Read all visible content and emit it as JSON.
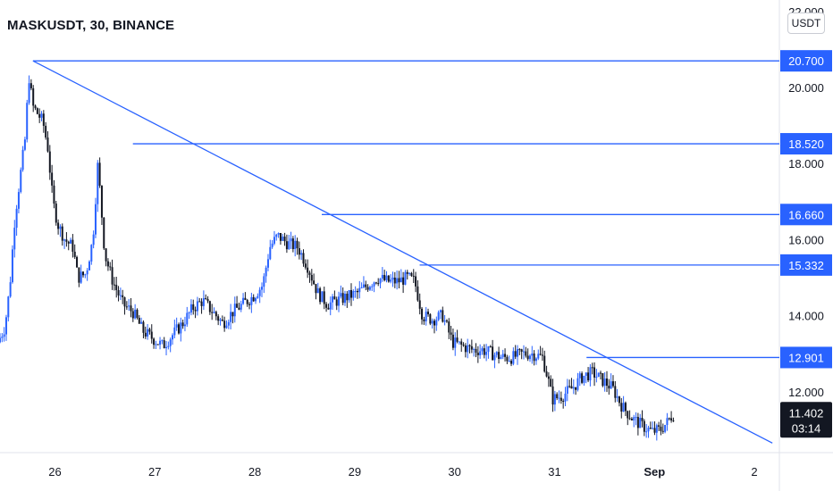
{
  "header": {
    "title": "MASKUSDT, 30, BINANCE"
  },
  "price_axis": {
    "unit": "USDT",
    "tick_labels": [
      "22.000",
      "20.000",
      "18.000",
      "16.000",
      "14.000",
      "12.000"
    ]
  },
  "time_axis": {
    "tick_labels": [
      "26",
      "27",
      "28",
      "29",
      "30",
      "31",
      "Sep",
      "2"
    ]
  },
  "current_price": {
    "price": "11.402",
    "countdown": "03:14",
    "value": 11.402
  },
  "colors": {
    "line": "#2962ff",
    "up_candle": "#2962ff",
    "down_candle": "#131722",
    "current_badge": "#131722",
    "axis_text": "#131722",
    "grid": "#e0e3eb"
  },
  "chart_data": {
    "type": "candlestick",
    "symbol": "MASKUSDT",
    "interval": "30",
    "exchange": "BINANCE",
    "ylim": [
      10.4,
      22.3
    ],
    "y_ticks": [
      22,
      20,
      18,
      16,
      14,
      12
    ],
    "x_ticks": [
      "26",
      "27",
      "28",
      "29",
      "30",
      "31",
      "Sep",
      "2"
    ],
    "x_tick_days": [
      26,
      27,
      28,
      29,
      30,
      31,
      32,
      33
    ],
    "xlim_days": [
      25.45,
      33.25
    ],
    "horizontal_levels": [
      {
        "value": 20.7,
        "label": "20.700",
        "start_day": 25.78
      },
      {
        "value": 18.52,
        "label": "18.520",
        "start_day": 26.78
      },
      {
        "value": 16.66,
        "label": "16.660",
        "start_day": 28.67
      },
      {
        "value": 15.332,
        "label": "15.332",
        "start_day": 29.65
      },
      {
        "value": 12.901,
        "label": "12.901",
        "start_day": 31.32
      }
    ],
    "trendline": {
      "start": {
        "day": 25.78,
        "value": 20.7
      },
      "end": {
        "day": 33.18,
        "value": 10.65
      }
    },
    "price_path": [
      [
        25.45,
        13.3
      ],
      [
        25.52,
        13.7
      ],
      [
        25.57,
        14.8
      ],
      [
        25.62,
        16.6
      ],
      [
        25.67,
        17.6
      ],
      [
        25.72,
        18.6
      ],
      [
        25.76,
        20.3
      ],
      [
        25.8,
        19.5
      ],
      [
        25.85,
        19.3
      ],
      [
        25.9,
        19.1
      ],
      [
        25.95,
        18.4
      ],
      [
        26.0,
        17.0
      ],
      [
        26.05,
        16.4
      ],
      [
        26.12,
        16.0
      ],
      [
        26.2,
        15.8
      ],
      [
        26.25,
        15.0
      ],
      [
        26.33,
        15.1
      ],
      [
        26.4,
        16.0
      ],
      [
        26.45,
        18.0
      ],
      [
        26.52,
        15.6
      ],
      [
        26.6,
        14.9
      ],
      [
        26.7,
        14.3
      ],
      [
        26.8,
        14.1
      ],
      [
        26.9,
        13.6
      ],
      [
        27.0,
        13.4
      ],
      [
        27.1,
        13.2
      ],
      [
        27.2,
        13.5
      ],
      [
        27.3,
        13.8
      ],
      [
        27.4,
        14.2
      ],
      [
        27.5,
        14.4
      ],
      [
        27.6,
        14.1
      ],
      [
        27.7,
        13.8
      ],
      [
        27.8,
        14.1
      ],
      [
        27.9,
        14.3
      ],
      [
        28.0,
        14.5
      ],
      [
        28.1,
        14.8
      ],
      [
        28.17,
        15.8
      ],
      [
        28.25,
        16.1
      ],
      [
        28.35,
        15.9
      ],
      [
        28.45,
        15.8
      ],
      [
        28.55,
        15.3
      ],
      [
        28.65,
        14.6
      ],
      [
        28.75,
        14.3
      ],
      [
        28.85,
        14.4
      ],
      [
        28.95,
        14.5
      ],
      [
        29.05,
        14.6
      ],
      [
        29.15,
        14.8
      ],
      [
        29.25,
        15.0
      ],
      [
        29.35,
        14.9
      ],
      [
        29.45,
        14.9
      ],
      [
        29.55,
        15.0
      ],
      [
        29.62,
        14.9
      ],
      [
        29.7,
        14.0
      ],
      [
        29.8,
        13.9
      ],
      [
        29.9,
        14.0
      ],
      [
        30.0,
        13.3
      ],
      [
        30.1,
        13.2
      ],
      [
        30.2,
        13.1
      ],
      [
        30.3,
        13.1
      ],
      [
        30.4,
        13.0
      ],
      [
        30.5,
        12.9
      ],
      [
        30.6,
        12.9
      ],
      [
        30.7,
        13.0
      ],
      [
        30.8,
        13.0
      ],
      [
        30.9,
        12.9
      ],
      [
        30.95,
        12.4
      ],
      [
        31.0,
        11.8
      ],
      [
        31.1,
        11.9
      ],
      [
        31.2,
        12.1
      ],
      [
        31.3,
        12.4
      ],
      [
        31.4,
        12.5
      ],
      [
        31.5,
        12.3
      ],
      [
        31.6,
        12.1
      ],
      [
        31.7,
        11.6
      ],
      [
        31.8,
        11.3
      ],
      [
        31.9,
        11.1
      ],
      [
        32.0,
        10.95
      ],
      [
        32.08,
        11.0
      ],
      [
        32.15,
        11.2
      ],
      [
        32.2,
        11.402
      ]
    ]
  }
}
